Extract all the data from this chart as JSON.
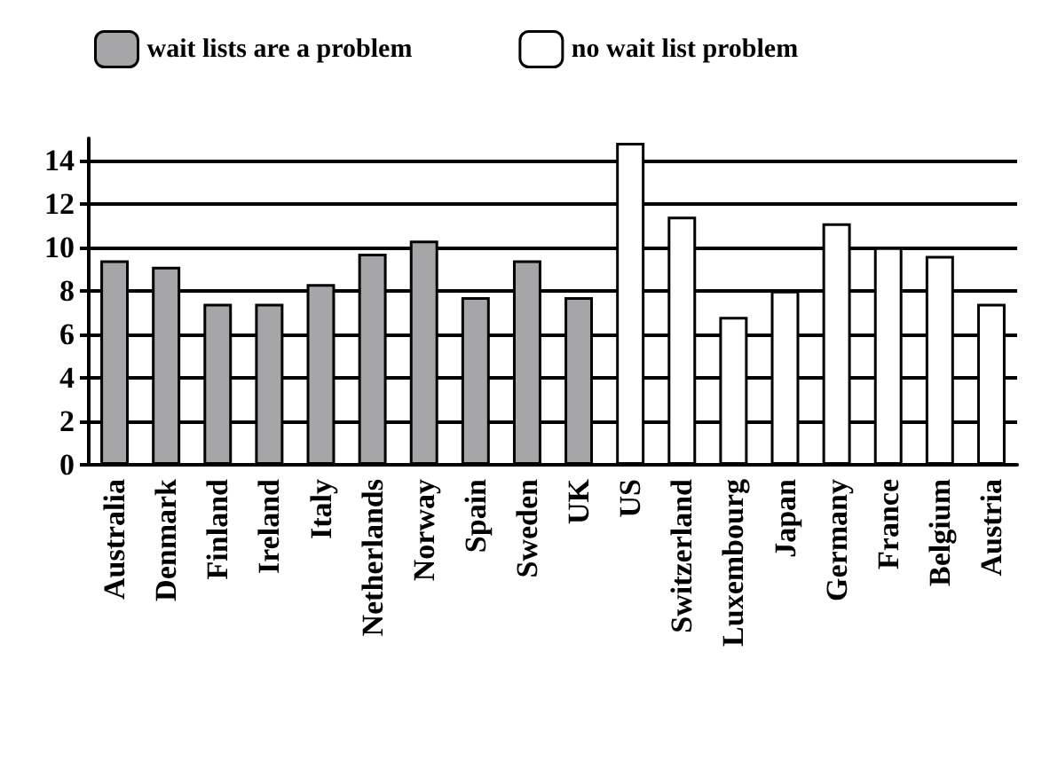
{
  "chart_data": {
    "type": "bar",
    "categories": [
      "Australia",
      "Denmark",
      "Finland",
      "Ireland",
      "Italy",
      "Netherlands",
      "Norway",
      "Spain",
      "Sweden",
      "UK",
      "US",
      "Switzerland",
      "Luxembourg",
      "Japan",
      "Germany",
      "France",
      "Belgium",
      "Austria"
    ],
    "series": [
      {
        "name": "wait lists are a problem",
        "color": "#a6a6a8",
        "values": [
          9.4,
          9.1,
          7.4,
          7.4,
          8.3,
          9.7,
          10.3,
          7.7,
          9.4,
          7.7,
          null,
          null,
          null,
          null,
          null,
          null,
          null,
          null
        ]
      },
      {
        "name": "no wait list problem",
        "color": "#ffffff",
        "values": [
          null,
          null,
          null,
          null,
          null,
          null,
          null,
          null,
          null,
          null,
          14.8,
          11.4,
          6.8,
          8,
          11.1,
          10,
          9.6,
          7.4
        ]
      }
    ],
    "ylim": [
      0,
      15
    ],
    "yticks": [
      0,
      2,
      4,
      6,
      8,
      10,
      12,
      14
    ],
    "grid": "y",
    "legend": "top"
  }
}
